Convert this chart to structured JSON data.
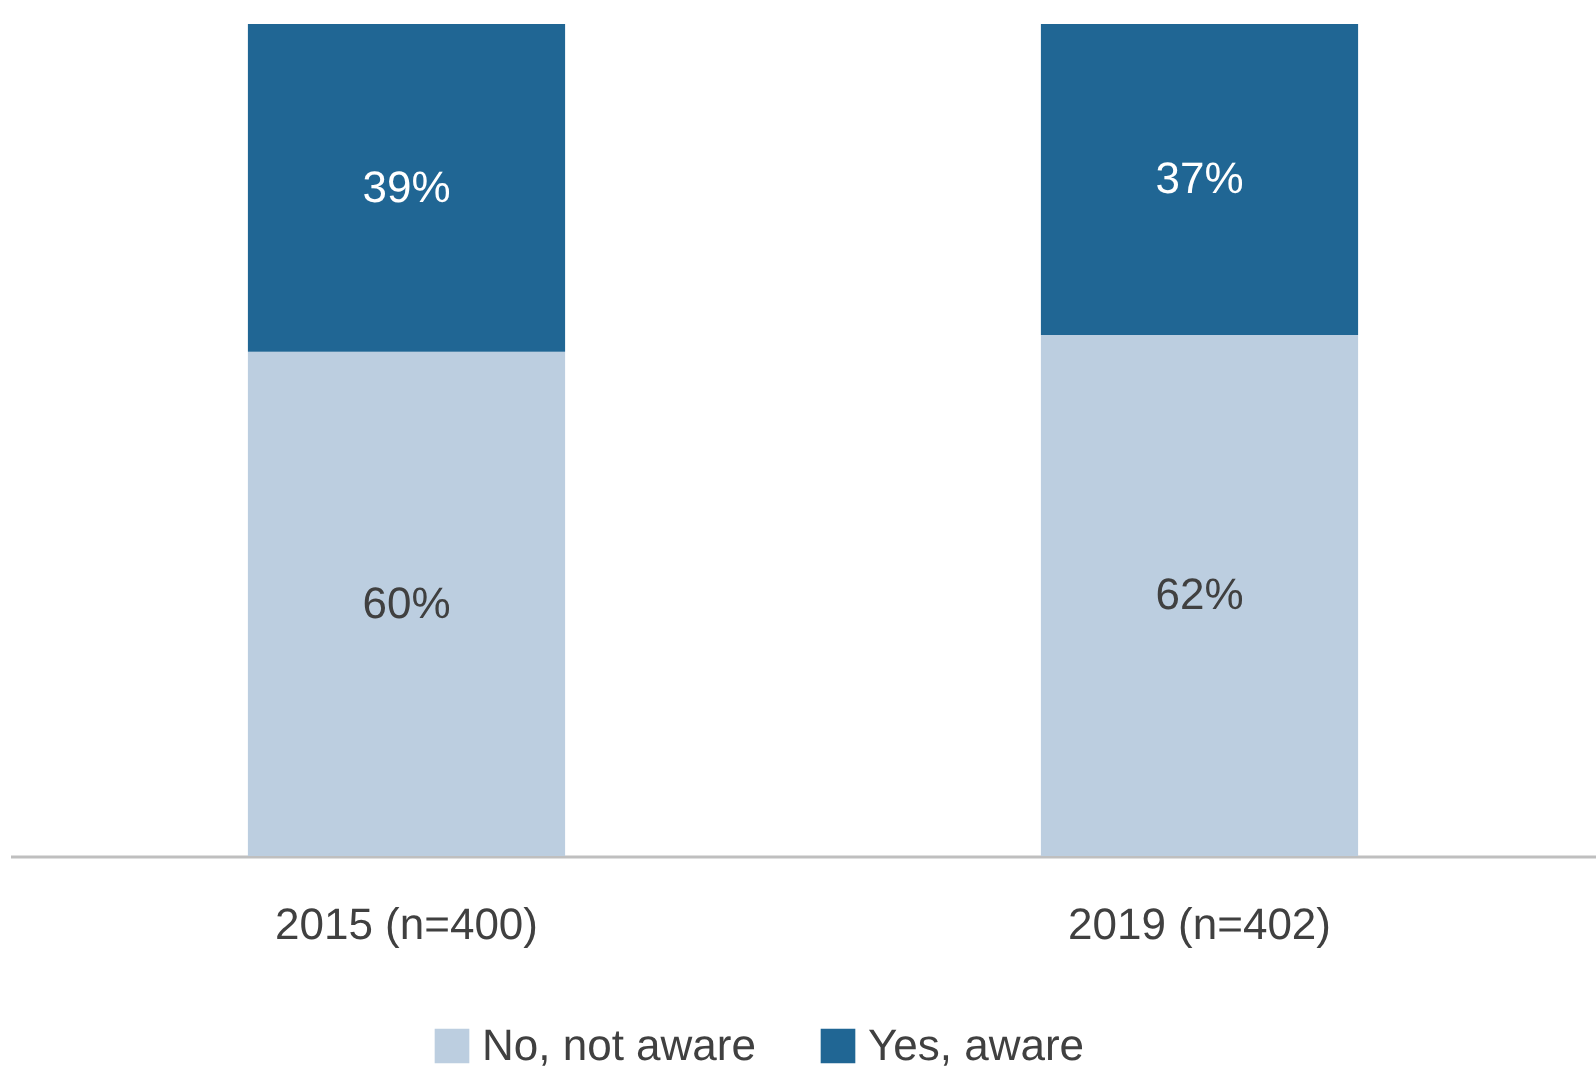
{
  "chart_data": {
    "type": "bar",
    "stacked": true,
    "categories": [
      "2015 (n=400)",
      "2019 (n=402)"
    ],
    "series": [
      {
        "name": "No, not aware",
        "color": "#bccee0",
        "values": [
          60,
          62
        ],
        "value_labels": [
          "60%",
          "62%"
        ]
      },
      {
        "name": "Yes, aware",
        "color": "#206694",
        "values": [
          39,
          37
        ],
        "value_labels": [
          "39%",
          "37%"
        ]
      }
    ],
    "legend": "bottom",
    "grid": false
  }
}
